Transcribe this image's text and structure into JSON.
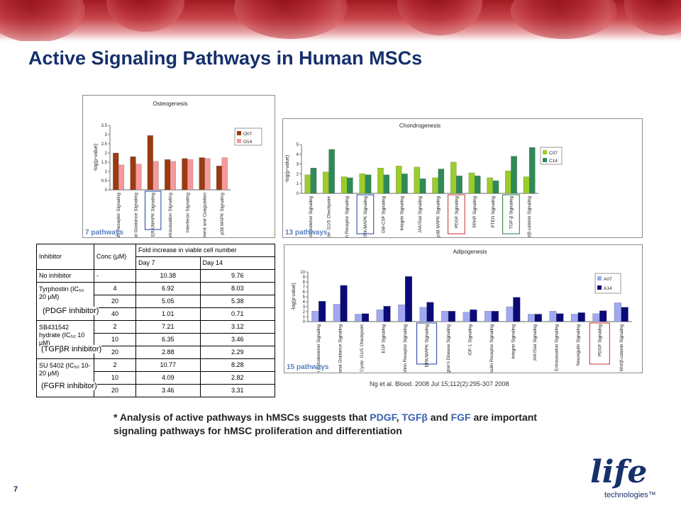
{
  "slide": {
    "title": "Active Signaling Pathways in Human MSCs",
    "page_number": "7",
    "citation": "Ng et al. Blood. 2008 Jul 15;112(2):295-307 2008",
    "note_prefix": "* Analysis of active pathways in hMSCs suggests that ",
    "note_pdgf": "PDGF",
    "note_sep1": ", ",
    "note_tgfb": "TGFβ",
    "note_and": " and ",
    "note_fgf": "FGF",
    "note_suffix": " are important signaling pathways for hMSC proliferation and differentiation",
    "logo_word": "life",
    "logo_sub": "technologies™"
  },
  "panels": {
    "osteo_pathways": "7 pathways",
    "chondro_pathways": "13 pathways",
    "adipo_pathways": "15 pathways"
  },
  "table": {
    "headers": [
      "Inhibitor",
      "Conc (µM)",
      "Fold increase in viable cell number"
    ],
    "subheaders": [
      "Day 7",
      "Day 14"
    ],
    "rows": {
      "none": {
        "name": "No inhibitor",
        "conc": "-",
        "d7": "10.38",
        "d14": "9.76"
      },
      "tyr_name": "Tyrphostin (IC₅₀ 20 µM)",
      "tyr_tag": "(PDGF inhibitor)",
      "tyr": [
        {
          "conc": "4",
          "d7": "6.92",
          "d14": "8.03"
        },
        {
          "conc": "20",
          "d7": "5.05",
          "d14": "5.38"
        },
        {
          "conc": "40",
          "d7": "1.01",
          "d14": "0.71"
        }
      ],
      "sb_name": "SB431542 hydrate (IC₅₀ 10 µM)",
      "sb_tag": "(TGFβR inhibitor)",
      "sb": [
        {
          "conc": "2",
          "d7": "7.21",
          "d14": "3.12"
        },
        {
          "conc": "10",
          "d7": "6.35",
          "d14": "3.46"
        },
        {
          "conc": "20",
          "d7": "2.88",
          "d14": "2.29"
        }
      ],
      "su_name": "SU 5402 (IC₅₀ 10-20 µM)",
      "su_tag": "(FGFR inhibitor)",
      "su": [
        {
          "conc": "2",
          "d7": "10.77",
          "d14": "8.28"
        },
        {
          "conc": "10",
          "d7": "4.09",
          "d14": "2.82"
        },
        {
          "conc": "20",
          "d7": "3.46",
          "d14": "3.31"
        }
      ]
    }
  },
  "chart_data": [
    {
      "type": "bar",
      "title": "Osteogenesis",
      "ylabel": "-log(p-value)",
      "ylim": [
        0,
        3.5
      ],
      "yticks": [
        0,
        0.5,
        1,
        1.5,
        2,
        2.5,
        3,
        3.5
      ],
      "categories": [
        "Death Receptor Signaling",
        "Axonal Guidance Signaling",
        "ERK/MAPK Signaling",
        "Leukocyte Extravasation Signaling",
        "Interferon Signaling",
        "Complement and Coagulation",
        "p38 MAPK Signaling"
      ],
      "series": [
        {
          "name": "O07",
          "color": "#9c3a12",
          "values": [
            2.0,
            1.8,
            2.95,
            1.65,
            1.7,
            1.75,
            1.3
          ]
        },
        {
          "name": "O14",
          "color": "#f59a9a",
          "values": [
            1.35,
            1.4,
            1.55,
            1.55,
            1.65,
            1.7,
            1.75
          ]
        }
      ],
      "boxed": [
        "ERK/MAPK Signaling"
      ],
      "legend": "right"
    },
    {
      "type": "bar",
      "title": "Chondrogenesis",
      "ylabel": "-log(p-value)",
      "ylim": [
        0,
        5
      ],
      "yticks": [
        0,
        1,
        2,
        3,
        4,
        5
      ],
      "categories": [
        "Actin Cytoskeleton Signaling",
        "Cell Cycle: G1/S Checkpoint",
        "Ephrin Receptor Signaling",
        "ERK/MAPK Signaling",
        "GM-CSF Signaling",
        "Integrin Signaling",
        "JAK/Stat Signaling",
        "p38 MAPK Signaling",
        "PDGF Signaling",
        "PPAR Signaling",
        "PTEN Signaling",
        "TGF-β Signaling",
        "Wnt/β-catenin Signaling"
      ],
      "series": [
        {
          "name": "C07",
          "color": "#9acd2a",
          "values": [
            1.9,
            2.2,
            1.7,
            2.0,
            2.6,
            2.8,
            2.7,
            1.6,
            3.2,
            2.1,
            1.6,
            2.3,
            1.7
          ]
        },
        {
          "name": "C14",
          "color": "#2e8b57",
          "values": [
            2.6,
            4.5,
            1.6,
            1.9,
            1.9,
            2.0,
            1.5,
            2.5,
            1.8,
            1.8,
            1.3,
            3.8,
            4.7
          ]
        }
      ],
      "boxed": [
        "ERK/MAPK Signaling",
        "PDGF Signaling",
        "TGF-β Signaling"
      ],
      "legend": "right"
    },
    {
      "type": "bar",
      "title": "Adipogenesis",
      "ylabel": "-log(p-value)",
      "ylim": [
        0,
        10
      ],
      "yticks": [
        0,
        1,
        2,
        3,
        4,
        5,
        6,
        7,
        8,
        9,
        10
      ],
      "categories": [
        "Actin Cytoskeleton Signaling",
        "Axonal Guidance Signaling",
        "Cell Cycle: G1/S Checkpoint",
        "EGF Signaling",
        "Ephrin Receptor Signaling",
        "ERK/MAPK Signaling",
        "Huntington's Disease Signaling",
        "IGF-1 Signaling",
        "Insulin Receptor Signaling",
        "Integrin Signaling",
        "JAK/Stat Signaling",
        "Leukocyte Extravasation Signaling",
        "Neuregulin Signaling",
        "PDGF Signaling",
        "Wnt/β-catenin Signaling"
      ],
      "series": [
        {
          "name": "A07",
          "color": "#9fa8f0",
          "values": [
            2.1,
            3.5,
            1.5,
            2.4,
            3.4,
            2.9,
            2.1,
            1.9,
            2.1,
            3.0,
            1.5,
            2.1,
            1.5,
            1.6,
            3.8
          ]
        },
        {
          "name": "A14",
          "color": "#0a0a78",
          "values": [
            4.1,
            7.3,
            1.6,
            3.1,
            9.1,
            3.9,
            2.1,
            2.4,
            2.1,
            4.9,
            1.5,
            1.6,
            1.8,
            2.2,
            2.9
          ]
        }
      ],
      "boxed": [
        "ERK/MAPK Signaling",
        "PDGF Signaling"
      ],
      "legend": "top-right"
    }
  ]
}
